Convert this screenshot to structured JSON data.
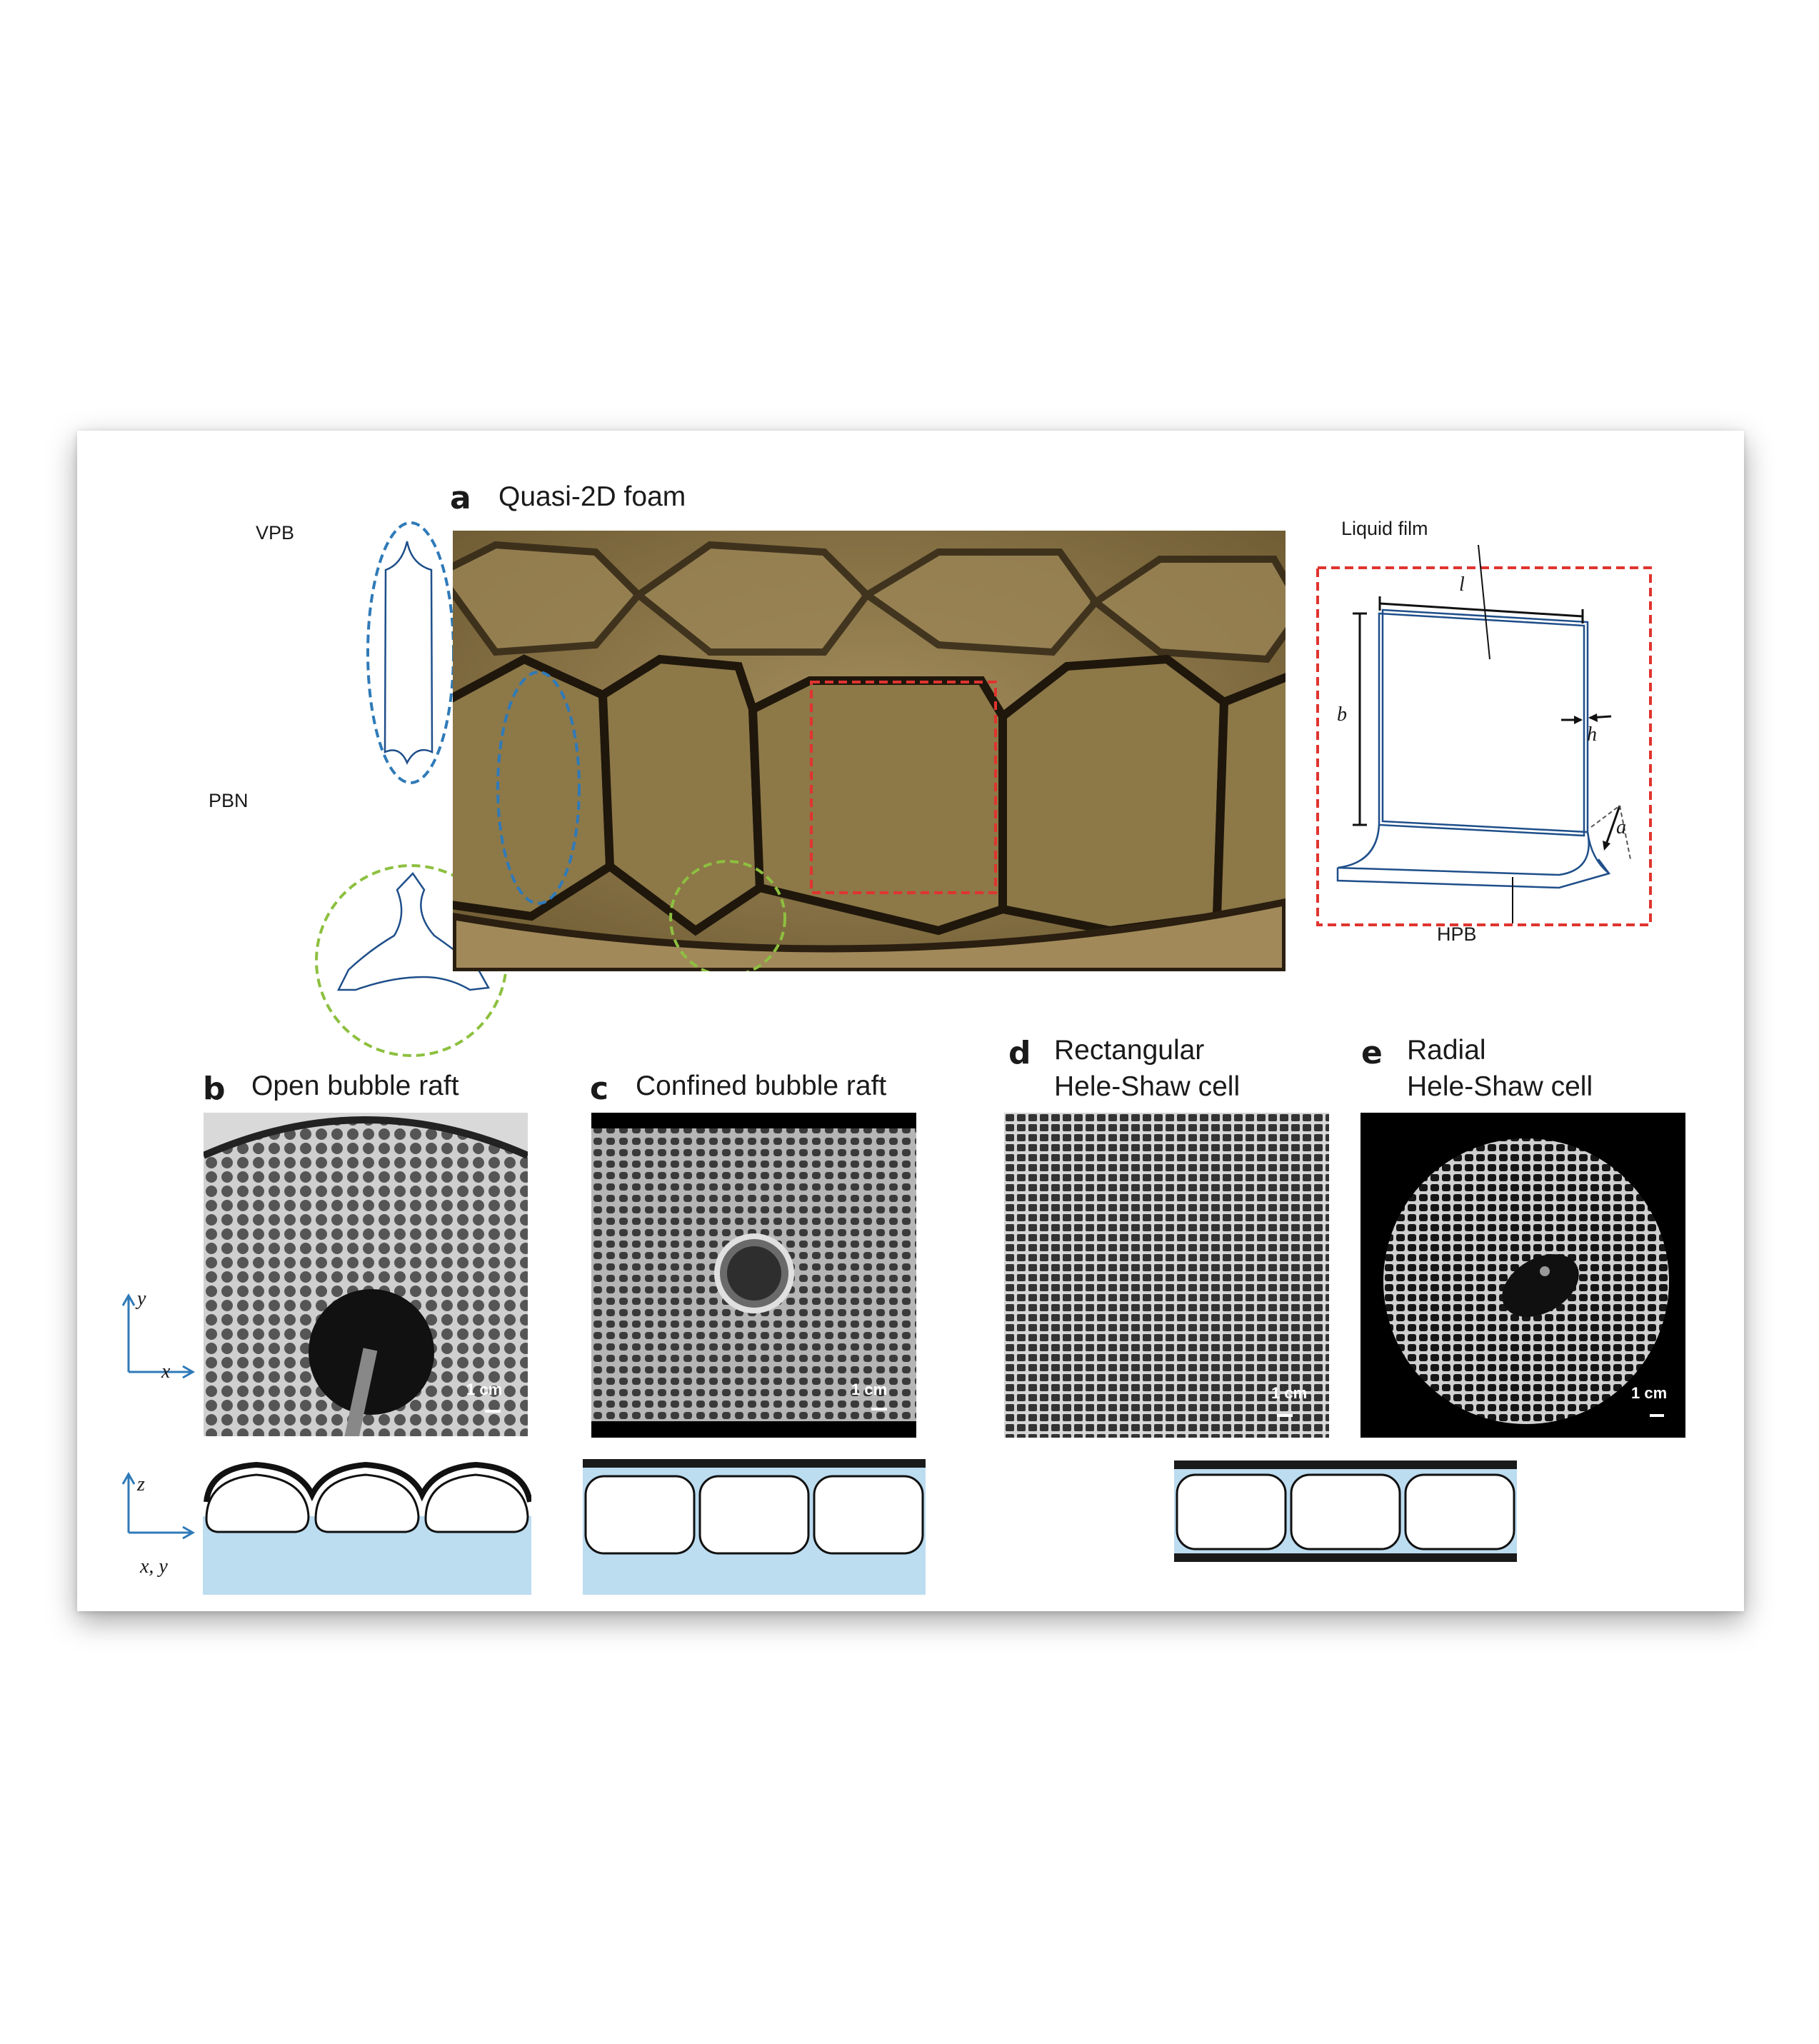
{
  "panels": {
    "a": {
      "letter": "a",
      "title": "Quasi-2D foam"
    },
    "b": {
      "letter": "b",
      "title": "Open bubble raft",
      "scale": "1 cm"
    },
    "c": {
      "letter": "c",
      "title": "Confined bubble raft",
      "scale": "1 cm"
    },
    "d": {
      "letter": "d",
      "title": "Rectangular\nHele-Shaw cell",
      "scale": "1 cm"
    },
    "e": {
      "letter": "e",
      "title": "Radial\nHele-Shaw cell",
      "scale": "1 cm"
    }
  },
  "labels": {
    "vpb": "VPB",
    "pbn": "PBN",
    "liquid_film": "Liquid film",
    "hpb": "HPB",
    "l": "l",
    "b": "b",
    "h": "h",
    "a": "a"
  },
  "axes": {
    "xy": {
      "x": "x",
      "y": "y"
    },
    "xz": {
      "x": "x, y",
      "z": "z"
    }
  },
  "colors": {
    "vpb_outline": "#2f7ab8",
    "pbn_outline": "#8dc03f",
    "film_outline": "#e0342f",
    "liquid": "#bcdcf0",
    "sketch_line": "#1f4f8a"
  }
}
